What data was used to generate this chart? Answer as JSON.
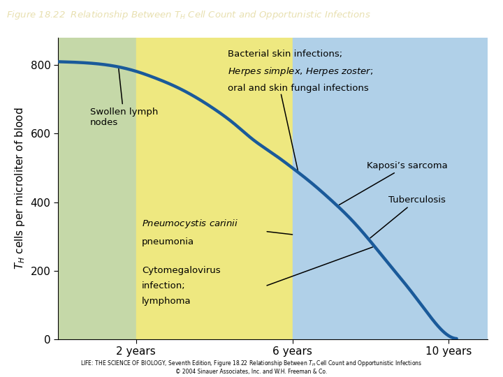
{
  "title": "Figure 18.22  Relationship Between $T_H$ Cell Count and Opportunistic Infections",
  "xlabel_vals": [
    2,
    6,
    10
  ],
  "yticks": [
    0,
    200,
    400,
    600,
    800
  ],
  "ylim": [
    0,
    880
  ],
  "xlim": [
    0,
    11
  ],
  "region1_color": "#c5d8a8",
  "region2_color": "#eee880",
  "region3_color": "#b0d0e8",
  "curve_color": "#1a5a9a",
  "curve_lw": 3.2,
  "title_bg": "#4a3a80",
  "title_color": "#e8e0b0",
  "curve_points_x": [
    0,
    0.5,
    1,
    1.5,
    2,
    2.5,
    3,
    3.5,
    4,
    4.5,
    5,
    5.5,
    6,
    6.5,
    7,
    7.5,
    8,
    8.5,
    9,
    9.5,
    10,
    10.2
  ],
  "curve_points_y": [
    810,
    808,
    804,
    796,
    782,
    762,
    738,
    708,
    672,
    630,
    582,
    542,
    500,
    455,
    405,
    350,
    285,
    215,
    145,
    70,
    10,
    2
  ],
  "footer": "LIFE: THE SCIENCE OF BIOLOGY, Seventh Edition, Figure 18.22 Relationship Between TH Cell Count and Opportunistic Infections\n© 2004 Sinauer Associates, Inc. and W.H. Freeman & Co."
}
